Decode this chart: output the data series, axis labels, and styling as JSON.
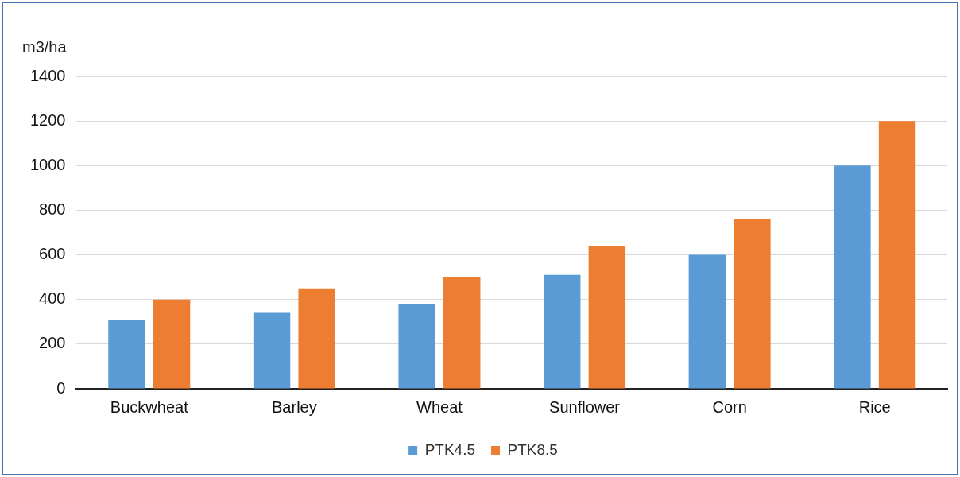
{
  "chart_data": {
    "type": "bar",
    "ylabel": "m3/ha",
    "categories": [
      "Buckwheat",
      "Barley",
      "Wheat",
      "Sunflower",
      "Corn",
      "Rice"
    ],
    "series": [
      {
        "name": "PTK4.5",
        "color": "#5b9bd5",
        "values": [
          310,
          340,
          380,
          510,
          600,
          1000
        ]
      },
      {
        "name": "PTK8.5",
        "color": "#ed7d31",
        "values": [
          400,
          450,
          500,
          640,
          760,
          1200
        ]
      }
    ],
    "ylim": [
      0,
      1400
    ],
    "yticks": [
      0,
      200,
      400,
      600,
      800,
      1000,
      1200,
      1400
    ],
    "grid": "y",
    "legend": "bottom"
  }
}
